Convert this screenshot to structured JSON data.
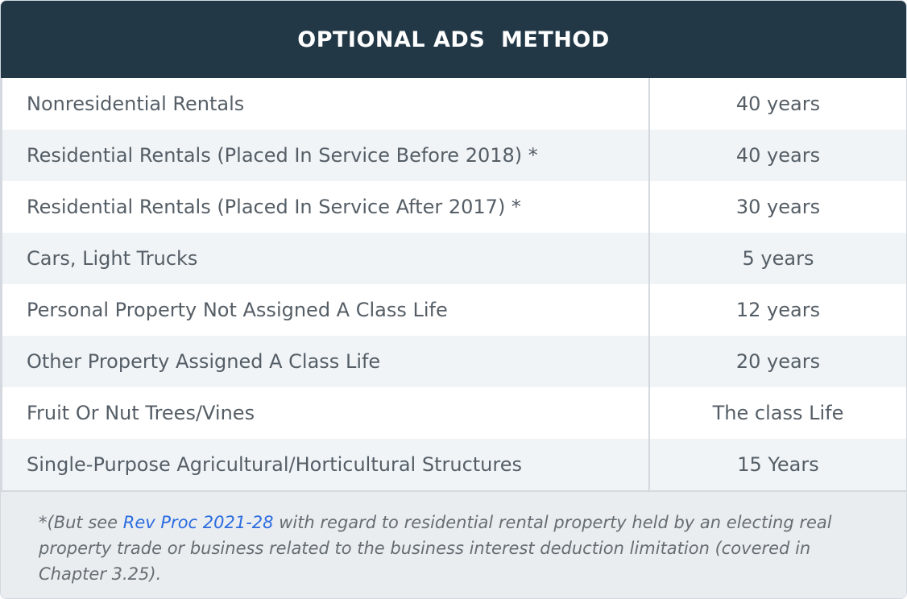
{
  "header": {
    "title": "OPTIONAL ADS  METHOD"
  },
  "rows": [
    {
      "label": "Nonresidential Rentals",
      "value": "40 years"
    },
    {
      "label": "Residential Rentals (Placed In Service Before 2018) *",
      "value": "40 years"
    },
    {
      "label": "Residential Rentals (Placed In Service After 2017) *",
      "value": "30 years"
    },
    {
      "label": "Cars, Light Trucks",
      "value": "5 years"
    },
    {
      "label": "Personal Property Not Assigned A Class Life",
      "value": "12 years"
    },
    {
      "label": "Other Property Assigned A Class Life",
      "value": "20 years"
    },
    {
      "label": "Fruit Or Nut Trees/Vines",
      "value": "The class Life"
    },
    {
      "label": "Single-Purpose Agricultural/Horticultural Structures",
      "value": "15 Years"
    }
  ],
  "footnote": {
    "prefix": "*(But see ",
    "link_text": "Rev Proc 2021-28",
    "suffix": " with regard to residential rental property held by an electing real property trade or business related to the business interest deduction limitation (covered in Chapter 3.25)."
  },
  "colors": {
    "header_bg": "#223847",
    "header_text": "#ffffff",
    "row_alt_bg": "#f0f4f7",
    "footnote_bg": "#e9edf0",
    "link": "#2c6ce0",
    "text": "#555e66"
  }
}
